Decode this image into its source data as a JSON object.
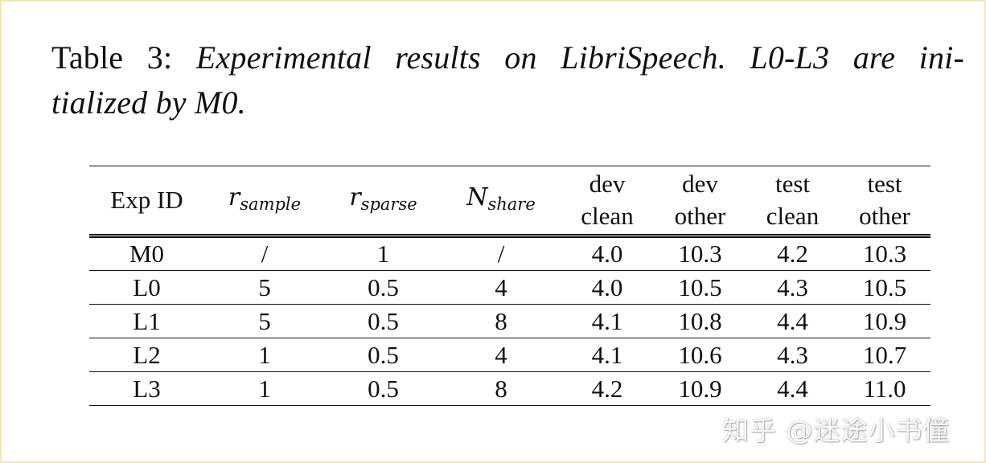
{
  "caption": {
    "label": "Table 3:",
    "line1": "Experimental results on LibriSpeech.  L0-L3 are ini-",
    "line2": "tialized by M0."
  },
  "table": {
    "headers": {
      "exp_id": "Exp ID",
      "r_sample": {
        "base": "r",
        "sub": "sample"
      },
      "r_sparse": {
        "base": "r",
        "sub": "sparse"
      },
      "n_share": {
        "base": "N",
        "sub": "share"
      },
      "dev_clean": [
        "dev",
        "clean"
      ],
      "dev_other": [
        "dev",
        "other"
      ],
      "test_clean": [
        "test",
        "clean"
      ],
      "test_other": [
        "test",
        "other"
      ]
    },
    "rows": [
      [
        "M0",
        "/",
        "1",
        "/",
        "4.0",
        "10.3",
        "4.2",
        "10.3"
      ],
      [
        "L0",
        "5",
        "0.5",
        "4",
        "4.0",
        "10.5",
        "4.3",
        "10.5"
      ],
      [
        "L1",
        "5",
        "0.5",
        "8",
        "4.1",
        "10.8",
        "4.4",
        "10.9"
      ],
      [
        "L2",
        "1",
        "0.5",
        "4",
        "4.1",
        "10.6",
        "4.3",
        "10.7"
      ],
      [
        "L3",
        "1",
        "0.5",
        "8",
        "4.2",
        "10.9",
        "4.4",
        "11.0"
      ]
    ]
  },
  "watermark": "知乎 @迷途小书僮"
}
